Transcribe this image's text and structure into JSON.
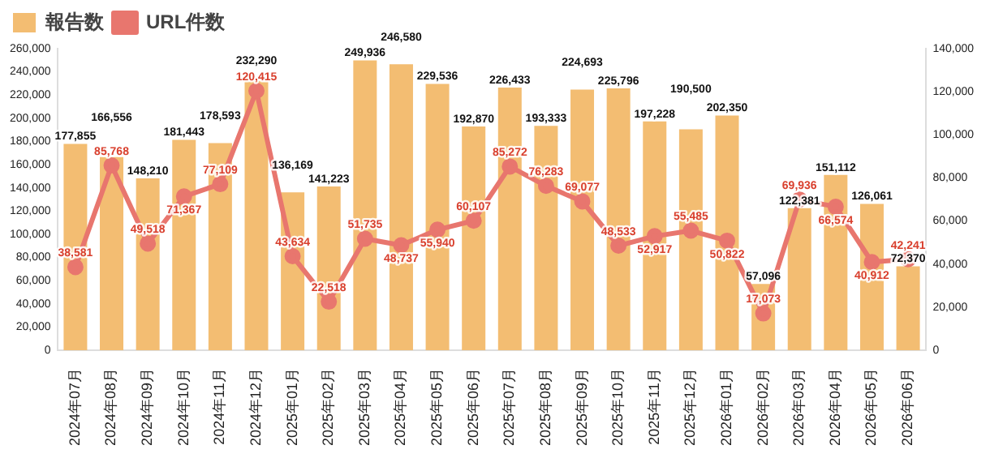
{
  "chart_data": {
    "type": "bar",
    "categories": [
      "2024年07月",
      "2024年08月",
      "2024年09月",
      "2024年10月",
      "2024年11月",
      "2024年12月",
      "2025年01月",
      "2025年02月",
      "2025年03月",
      "2025年04月",
      "2025年05月",
      "2025年06月",
      "2025年07月",
      "2025年08月",
      "2025年09月",
      "2025年10月",
      "2025年11月",
      "2025年12月",
      "2026年01月",
      "2026年02月",
      "2026年03月",
      "2026年04月",
      "2026年05月",
      "2026年06月"
    ],
    "series": [
      {
        "name": "報告数",
        "color": "#f3bd72",
        "values": [
          177855,
          166556,
          148210,
          181443,
          178593,
          232290,
          136169,
          141223,
          249936,
          246580,
          229536,
          192870,
          226433,
          193333,
          224693,
          225796,
          197228,
          190500,
          202350,
          57096,
          122381,
          151112,
          126061,
          72370
        ],
        "value_labels": [
          "177,855",
          "166,556",
          "148,210",
          "181,443",
          "178,593",
          "232,290",
          "136,169",
          "141,223",
          "249,936",
          "246,580",
          "229,536",
          "192,870",
          "226,433",
          "193,333",
          "224,693",
          "225,796",
          "197,228",
          "190,500",
          "202,350",
          "57,096",
          "122,381",
          "151,112",
          "126,061",
          "72,370"
        ]
      },
      {
        "name": "URL件数",
        "type": "line",
        "axis": "y2",
        "color": "#e8766e",
        "values": [
          38581,
          85768,
          49518,
          71367,
          77109,
          120415,
          43634,
          22518,
          51735,
          48737,
          55940,
          60107,
          85272,
          76283,
          69077,
          48533,
          52917,
          55485,
          50822,
          17073,
          69936,
          66574,
          40912,
          42241
        ],
        "value_labels": [
          "38,581",
          "85,768",
          "49,518",
          "71,367",
          "77,109",
          "120,415",
          "43,634",
          "22,518",
          "51,735",
          "48,737",
          "55,940",
          "60,107",
          "85,272",
          "76,283",
          "69,077",
          "48,533",
          "52,917",
          "55,485",
          "50,822",
          "17,073",
          "69,936",
          "66,574",
          "40,912",
          "42,241"
        ]
      }
    ],
    "ylim": [
      0,
      260000
    ],
    "yticks": [
      0,
      {
        "value": 20000,
        "label": "20,000"
      },
      {
        "value": 40000,
        "label": "40,000"
      },
      {
        "value": 60000,
        "label": "60,000"
      },
      {
        "value": 80000,
        "label": "80,000"
      },
      {
        "value": 100000,
        "label": "100,000"
      },
      {
        "value": 120000,
        "label": "120,000"
      },
      {
        "value": 140000,
        "label": "140,000"
      },
      {
        "value": 160000,
        "label": "160,000"
      },
      {
        "value": 180000,
        "label": "180,000"
      },
      {
        "value": 200000,
        "label": "200,000"
      },
      {
        "value": 220000,
        "label": "220,000"
      },
      {
        "value": 240000,
        "label": "240,000"
      },
      {
        "value": 260000,
        "label": "260,000"
      }
    ],
    "y2lim": [
      0,
      140000
    ],
    "y2ticks": [
      0,
      {
        "value": 20000,
        "label": "20,000"
      },
      {
        "value": 40000,
        "label": "40,000"
      },
      {
        "value": 60000,
        "label": "60,000"
      },
      {
        "value": 80000,
        "label": "80,000"
      },
      {
        "value": 100000,
        "label": "100,000"
      },
      {
        "value": 120000,
        "label": "120,000"
      },
      {
        "value": 140000,
        "label": "140,000"
      }
    ],
    "legend": "top left",
    "grid": false,
    "marker": "circle"
  }
}
